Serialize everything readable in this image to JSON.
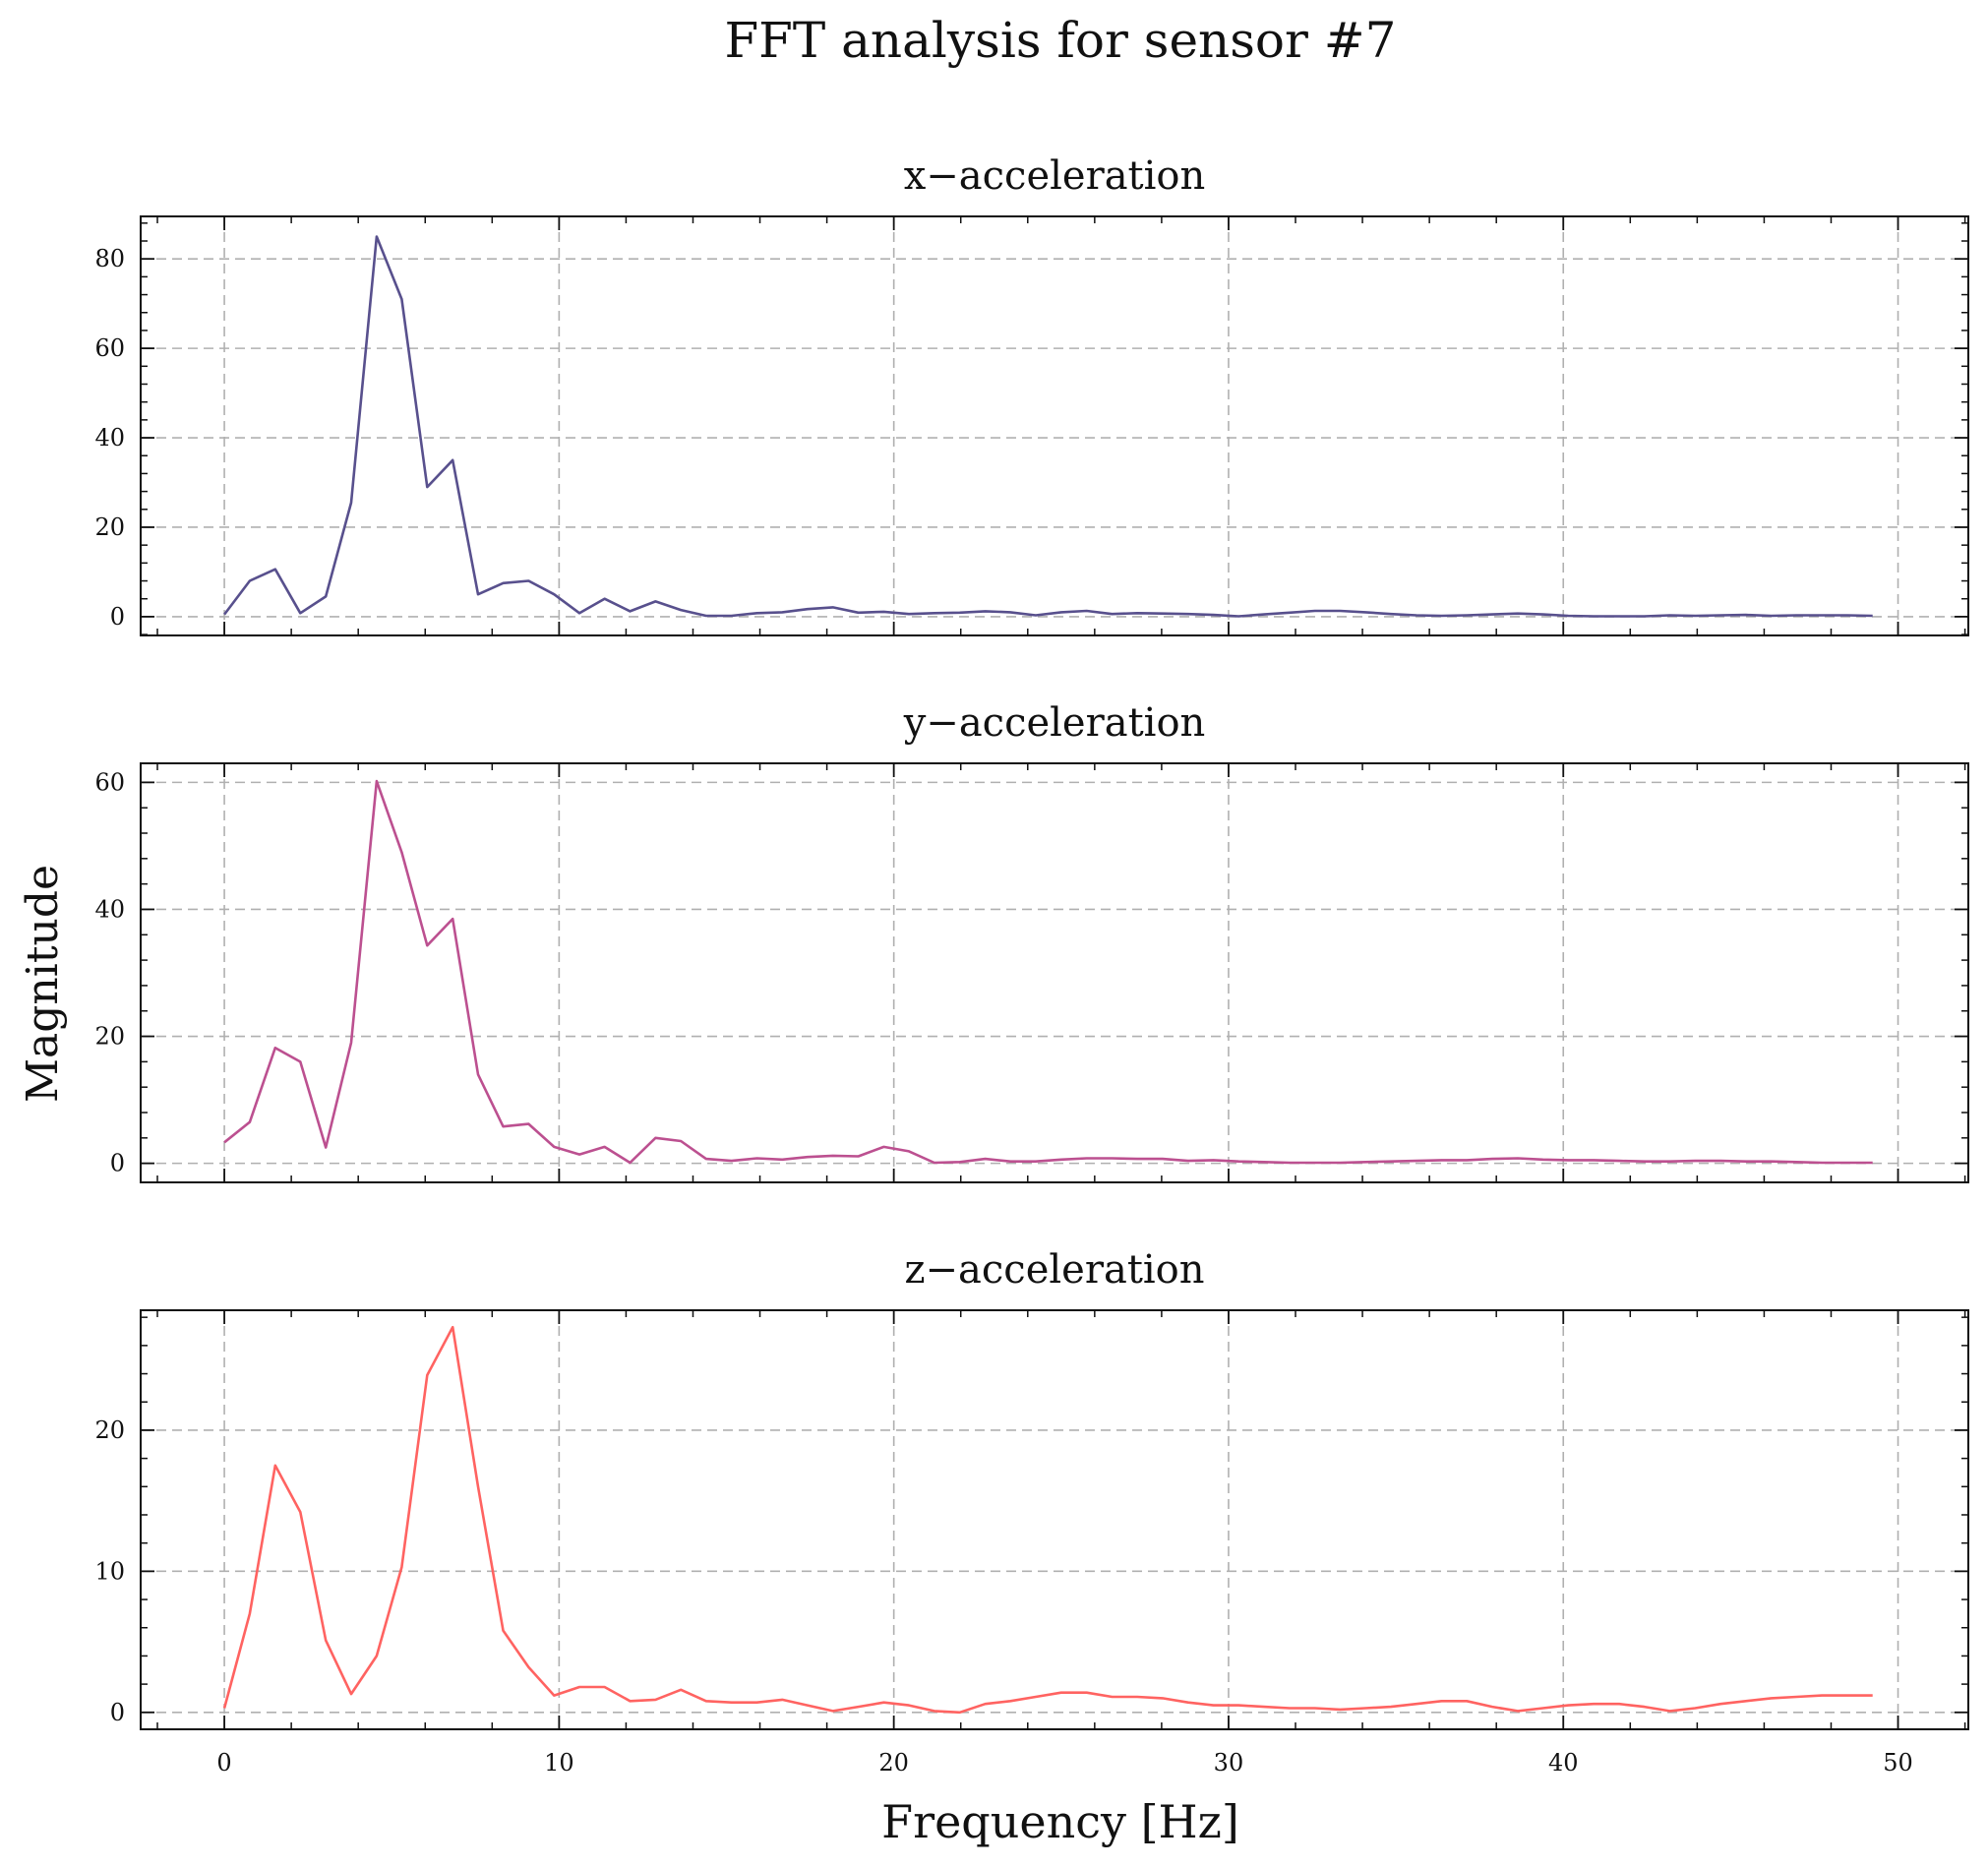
{
  "figure_title": "FFT analysis for sensor #7",
  "xlabel": "Frequency [Hz]",
  "ylabel": "Magnitude",
  "chart_data": [
    {
      "type": "line",
      "title": "x−acceleration",
      "color": "#58508d",
      "xlim": [
        -2.5,
        52.1
      ],
      "ylim": [
        -4.2,
        89.5
      ],
      "xticks": [
        0,
        10,
        20,
        30,
        40,
        50
      ],
      "yticks": [
        0,
        20,
        40,
        60,
        80
      ],
      "grid": true,
      "x": [
        0,
        0.76,
        1.52,
        2.27,
        3.03,
        3.79,
        4.55,
        5.3,
        6.06,
        6.82,
        7.58,
        8.33,
        9.09,
        9.85,
        10.61,
        11.36,
        12.12,
        12.88,
        13.64,
        14.39,
        15.15,
        15.91,
        16.67,
        17.42,
        18.18,
        18.94,
        19.7,
        20.45,
        21.21,
        21.97,
        22.73,
        23.48,
        24.24,
        25,
        25.76,
        26.52,
        27.27,
        28.03,
        28.79,
        29.55,
        30.3,
        31.06,
        31.82,
        32.58,
        33.33,
        34.09,
        34.85,
        35.61,
        36.36,
        37.12,
        37.88,
        38.64,
        39.39,
        40.15,
        40.91,
        41.67,
        42.42,
        43.18,
        43.94,
        44.7,
        45.45,
        46.21,
        46.97,
        47.73,
        48.48,
        49.24
      ],
      "y": [
        0.5,
        8.0,
        10.6,
        0.8,
        4.5,
        25.5,
        85.0,
        71.0,
        29.0,
        35.0,
        5.0,
        7.5,
        8.0,
        5.0,
        0.8,
        4.0,
        1.2,
        3.4,
        1.5,
        0.2,
        0.2,
        0.8,
        1.0,
        1.7,
        2.1,
        0.9,
        1.1,
        0.6,
        0.8,
        0.9,
        1.2,
        1.0,
        0.3,
        1.0,
        1.3,
        0.6,
        0.8,
        0.7,
        0.6,
        0.4,
        0.1,
        0.5,
        0.9,
        1.3,
        1.3,
        1.0,
        0.6,
        0.3,
        0.2,
        0.3,
        0.5,
        0.7,
        0.5,
        0.2,
        0.1,
        0.1,
        0.1,
        0.3,
        0.2,
        0.3,
        0.4,
        0.2,
        0.3,
        0.3,
        0.3,
        0.2
      ]
    },
    {
      "type": "line",
      "title": "y−acceleration",
      "color": "#bc5090",
      "xlim": [
        -2.5,
        52.1
      ],
      "ylim": [
        -3.0,
        63.0
      ],
      "xticks": [
        0,
        10,
        20,
        30,
        40,
        50
      ],
      "yticks": [
        0,
        20,
        40,
        60
      ],
      "grid": true,
      "x": [
        0,
        0.76,
        1.52,
        2.27,
        3.03,
        3.79,
        4.55,
        5.3,
        6.06,
        6.82,
        7.58,
        8.33,
        9.09,
        9.85,
        10.61,
        11.36,
        12.12,
        12.88,
        13.64,
        14.39,
        15.15,
        15.91,
        16.67,
        17.42,
        18.18,
        18.94,
        19.7,
        20.45,
        21.21,
        21.97,
        22.73,
        23.48,
        24.24,
        25,
        25.76,
        26.52,
        27.27,
        28.03,
        28.79,
        29.55,
        30.3,
        31.06,
        31.82,
        32.58,
        33.33,
        34.09,
        34.85,
        35.61,
        36.36,
        37.12,
        37.88,
        38.64,
        39.39,
        40.15,
        40.91,
        41.67,
        42.42,
        43.18,
        43.94,
        44.7,
        45.45,
        46.21,
        46.97,
        47.73,
        48.48,
        49.24
      ],
      "y": [
        3.3,
        6.5,
        18.2,
        16.0,
        2.5,
        19.0,
        60.2,
        49.0,
        34.3,
        38.5,
        14.0,
        5.8,
        6.2,
        2.6,
        1.4,
        2.6,
        0.1,
        4.0,
        3.5,
        0.7,
        0.4,
        0.8,
        0.6,
        1.0,
        1.2,
        1.1,
        2.6,
        1.9,
        0.1,
        0.2,
        0.7,
        0.3,
        0.3,
        0.6,
        0.8,
        0.8,
        0.7,
        0.7,
        0.4,
        0.5,
        0.3,
        0.2,
        0.1,
        0.1,
        0.1,
        0.2,
        0.3,
        0.4,
        0.5,
        0.5,
        0.7,
        0.8,
        0.6,
        0.5,
        0.5,
        0.4,
        0.3,
        0.3,
        0.4,
        0.4,
        0.3,
        0.3,
        0.2,
        0.1,
        0.1,
        0.1
      ]
    },
    {
      "type": "line",
      "title": "z−acceleration",
      "color": "#ff6361",
      "xlim": [
        -2.5,
        52.1
      ],
      "ylim": [
        -1.2,
        28.5
      ],
      "xticks": [
        0,
        10,
        20,
        30,
        40,
        50
      ],
      "yticks": [
        0,
        10,
        20
      ],
      "grid": true,
      "x": [
        0,
        0.76,
        1.52,
        2.27,
        3.03,
        3.79,
        4.55,
        5.3,
        6.06,
        6.82,
        7.58,
        8.33,
        9.09,
        9.85,
        10.61,
        11.36,
        12.12,
        12.88,
        13.64,
        14.39,
        15.15,
        15.91,
        16.67,
        17.42,
        18.18,
        18.94,
        19.7,
        20.45,
        21.21,
        21.97,
        22.73,
        23.48,
        24.24,
        25,
        25.76,
        26.52,
        27.27,
        28.03,
        28.79,
        29.55,
        30.3,
        31.06,
        31.82,
        32.58,
        33.33,
        34.09,
        34.85,
        35.61,
        36.36,
        37.12,
        37.88,
        38.64,
        39.39,
        40.15,
        40.91,
        41.67,
        42.42,
        43.18,
        43.94,
        44.7,
        45.45,
        46.21,
        46.97,
        47.73,
        48.48,
        49.24
      ],
      "y": [
        0.3,
        7.0,
        17.5,
        14.2,
        5.1,
        1.3,
        4.0,
        10.3,
        23.9,
        27.3,
        16.0,
        5.8,
        3.2,
        1.2,
        1.8,
        1.8,
        0.8,
        0.9,
        1.6,
        0.8,
        0.7,
        0.7,
        0.9,
        0.5,
        0.1,
        0.4,
        0.7,
        0.5,
        0.1,
        0.0,
        0.6,
        0.8,
        1.1,
        1.4,
        1.4,
        1.1,
        1.1,
        1.0,
        0.7,
        0.5,
        0.5,
        0.4,
        0.3,
        0.3,
        0.2,
        0.3,
        0.4,
        0.6,
        0.8,
        0.8,
        0.4,
        0.1,
        0.3,
        0.5,
        0.6,
        0.6,
        0.4,
        0.1,
        0.3,
        0.6,
        0.8,
        1.0,
        1.1,
        1.2,
        1.2,
        1.2
      ]
    }
  ]
}
